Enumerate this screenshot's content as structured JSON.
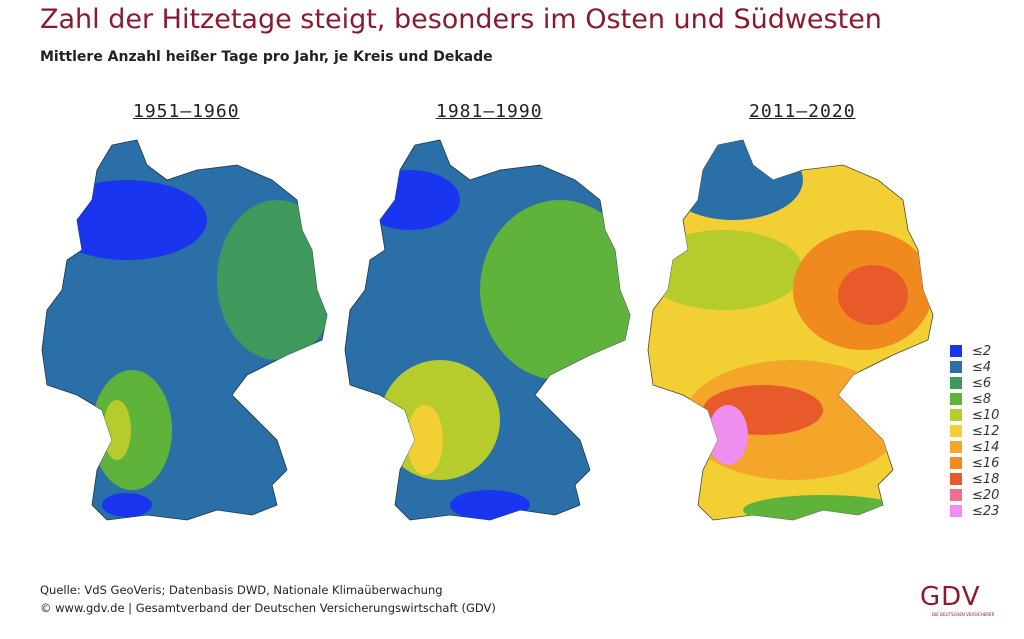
{
  "header": {
    "title": "Zahl der Hitzetage steigt, besonders im Osten und Südwesten",
    "subtitle": "Mittlere Anzahl heißer Tage pro Jahr, je Kreis und Dekade"
  },
  "panels": [
    {
      "title": "1951–1960"
    },
    {
      "title": "1981–1990"
    },
    {
      "title": "2011–2020"
    }
  ],
  "legend": {
    "items": [
      {
        "label": "≤2",
        "color": "#1a35f0"
      },
      {
        "label": "≤4",
        "color": "#2a6fa8"
      },
      {
        "label": "≤6",
        "color": "#3d9a5c"
      },
      {
        "label": "≤8",
        "color": "#5fb33a"
      },
      {
        "label": "≤10",
        "color": "#b5cc2c"
      },
      {
        "label": "≤12",
        "color": "#f2d033"
      },
      {
        "label": "≤14",
        "color": "#f3a62a"
      },
      {
        "label": "≤16",
        "color": "#f08a1f"
      },
      {
        "label": "≤18",
        "color": "#e95a2a"
      },
      {
        "label": "≤20",
        "color": "#ef6f8c"
      },
      {
        "label": "≤23",
        "color": "#f08ef0"
      }
    ]
  },
  "footer": {
    "source": "Quelle: VdS GeoVeris; Datenbasis DWD, Nationale Klimaüberwachung",
    "copyright": "© www.gdv.de | Gesamtverband der Deutschen Versicherungswirtschaft (GDV)"
  },
  "logo": {
    "text": "GDV",
    "tagline": "DIE DEUTSCHEN VERSICHERER"
  }
}
